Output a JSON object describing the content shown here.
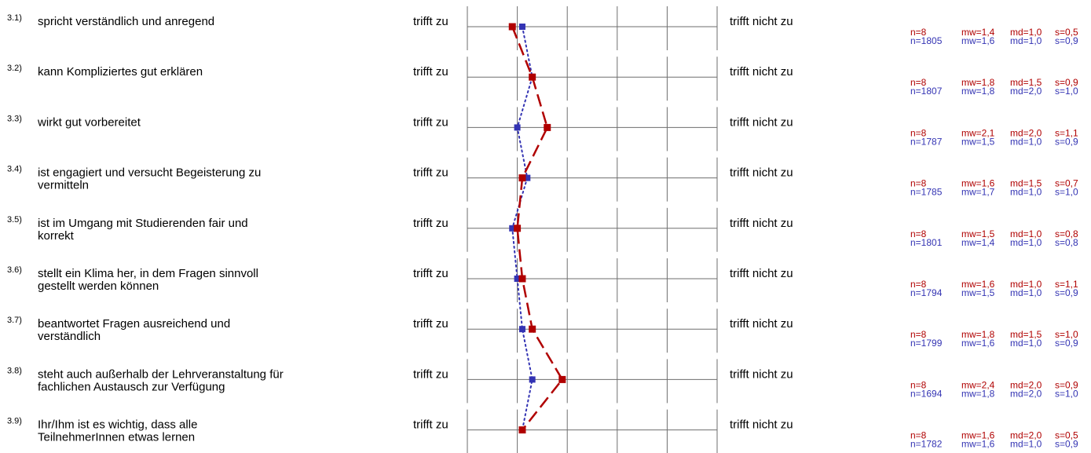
{
  "chart_data": {
    "type": "line",
    "scale_left": "trifft zu",
    "scale_right": "trifft nicht zu",
    "scale_points": 5,
    "colors": {
      "series_a": "#b00000",
      "series_b": "#3333b3",
      "grid": "#6e6e6e"
    },
    "items": [
      {
        "num": "3.1)",
        "lines": [
          "spricht verständlich und anregend"
        ],
        "a": {
          "n": "n=8",
          "mw": "mw=1,4",
          "md": "md=1,0",
          "s": "s=0,5"
        },
        "b": {
          "n": "n=1805",
          "mw": "mw=1,6",
          "md": "md=1,0",
          "s": "s=0,9"
        }
      },
      {
        "num": "3.2)",
        "lines": [
          "kann Kompliziertes gut erklären"
        ],
        "a": {
          "n": "n=8",
          "mw": "mw=1,8",
          "md": "md=1,5",
          "s": "s=0,9"
        },
        "b": {
          "n": "n=1807",
          "mw": "mw=1,8",
          "md": "md=2,0",
          "s": "s=1,0"
        }
      },
      {
        "num": "3.3)",
        "lines": [
          "wirkt gut vorbereitet"
        ],
        "a": {
          "n": "n=8",
          "mw": "mw=2,1",
          "md": "md=2,0",
          "s": "s=1,1"
        },
        "b": {
          "n": "n=1787",
          "mw": "mw=1,5",
          "md": "md=1,0",
          "s": "s=0,9"
        }
      },
      {
        "num": "3.4)",
        "lines": [
          "ist engagiert und versucht Begeisterung zu",
          "vermitteln"
        ],
        "a": {
          "n": "n=8",
          "mw": "mw=1,6",
          "md": "md=1,5",
          "s": "s=0,7"
        },
        "b": {
          "n": "n=1785",
          "mw": "mw=1,7",
          "md": "md=1,0",
          "s": "s=1,0"
        }
      },
      {
        "num": "3.5)",
        "lines": [
          "ist im Umgang mit Studierenden fair und",
          "korrekt"
        ],
        "a": {
          "n": "n=8",
          "mw": "mw=1,5",
          "md": "md=1,0",
          "s": "s=0,8"
        },
        "b": {
          "n": "n=1801",
          "mw": "mw=1,4",
          "md": "md=1,0",
          "s": "s=0,8"
        }
      },
      {
        "num": "3.6)",
        "lines": [
          "stellt ein Klima her, in dem Fragen sinnvoll",
          "gestellt werden können"
        ],
        "a": {
          "n": "n=8",
          "mw": "mw=1,6",
          "md": "md=1,0",
          "s": "s=1,1"
        },
        "b": {
          "n": "n=1794",
          "mw": "mw=1,5",
          "md": "md=1,0",
          "s": "s=0,9"
        }
      },
      {
        "num": "3.7)",
        "lines": [
          "beantwortet Fragen ausreichend und",
          "verständlich"
        ],
        "a": {
          "n": "n=8",
          "mw": "mw=1,8",
          "md": "md=1,5",
          "s": "s=1,0"
        },
        "b": {
          "n": "n=1799",
          "mw": "mw=1,6",
          "md": "md=1,0",
          "s": "s=0,9"
        }
      },
      {
        "num": "3.8)",
        "lines": [
          "steht auch außerhalb der Lehrveranstaltung für",
          "fachlichen Austausch zur Verfügung"
        ],
        "a": {
          "n": "n=8",
          "mw": "mw=2,4",
          "md": "md=2,0",
          "s": "s=0,9"
        },
        "b": {
          "n": "n=1694",
          "mw": "mw=1,8",
          "md": "md=2,0",
          "s": "s=1,0"
        }
      },
      {
        "num": "3.9)",
        "lines": [
          "Ihr/Ihm ist es wichtig, dass alle",
          "TeilnehmerInnen etwas lernen"
        ],
        "a": {
          "n": "n=8",
          "mw": "mw=1,6",
          "md": "md=2,0",
          "s": "s=0,5"
        },
        "b": {
          "n": "n=1782",
          "mw": "mw=1,6",
          "md": "md=1,0",
          "s": "s=0,9"
        }
      }
    ]
  }
}
